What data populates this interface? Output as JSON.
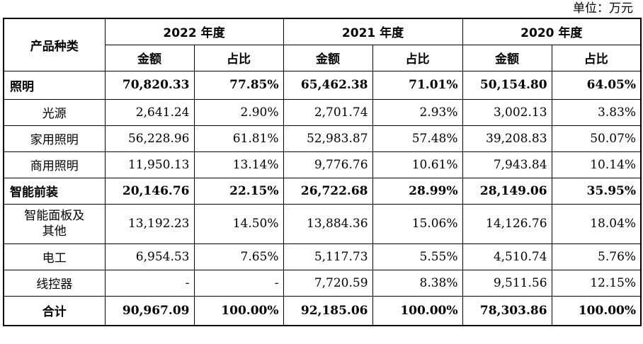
{
  "unit_label": "单位：万元",
  "header": {
    "category": "产品种类",
    "years": [
      "2022 年度",
      "2021 年度",
      "2020 年度"
    ],
    "amount": "金额",
    "ratio": "占比"
  },
  "rows": [
    {
      "name": "照明",
      "values": [
        "70,820.33",
        "77.85%",
        "65,462.38",
        "71.01%",
        "50,154.80",
        "64.05%"
      ]
    },
    {
      "name": "光源",
      "values": [
        "2,641.24",
        "2.90%",
        "2,701.74",
        "2.93%",
        "3,002.13",
        "3.83%"
      ]
    },
    {
      "name": "家用照明",
      "values": [
        "56,228.96",
        "61.81%",
        "52,983.87",
        "57.48%",
        "39,208.83",
        "50.07%"
      ]
    },
    {
      "name": "商用照明",
      "values": [
        "11,950.13",
        "13.14%",
        "9,776.76",
        "10.61%",
        "7,943.84",
        "10.14%"
      ]
    },
    {
      "name": "智能前装",
      "values": [
        "20,146.76",
        "22.15%",
        "26,722.68",
        "28.99%",
        "28,149.06",
        "35.95%"
      ]
    },
    {
      "name_line1": "智能面板及",
      "name_line2": "其他",
      "values": [
        "13,192.23",
        "14.50%",
        "13,884.36",
        "15.06%",
        "14,126.76",
        "18.04%"
      ]
    },
    {
      "name": "电工",
      "values": [
        "6,954.53",
        "7.65%",
        "5,117.73",
        "5.55%",
        "4,510.74",
        "5.76%"
      ]
    },
    {
      "name": "线控器",
      "values": [
        "-",
        "-",
        "7,720.59",
        "8.38%",
        "9,511.56",
        "12.15%"
      ]
    },
    {
      "name": "合计",
      "values": [
        "90,967.09",
        "100.00%",
        "92,185.06",
        "100.00%",
        "78,303.86",
        "100.00%"
      ]
    }
  ]
}
